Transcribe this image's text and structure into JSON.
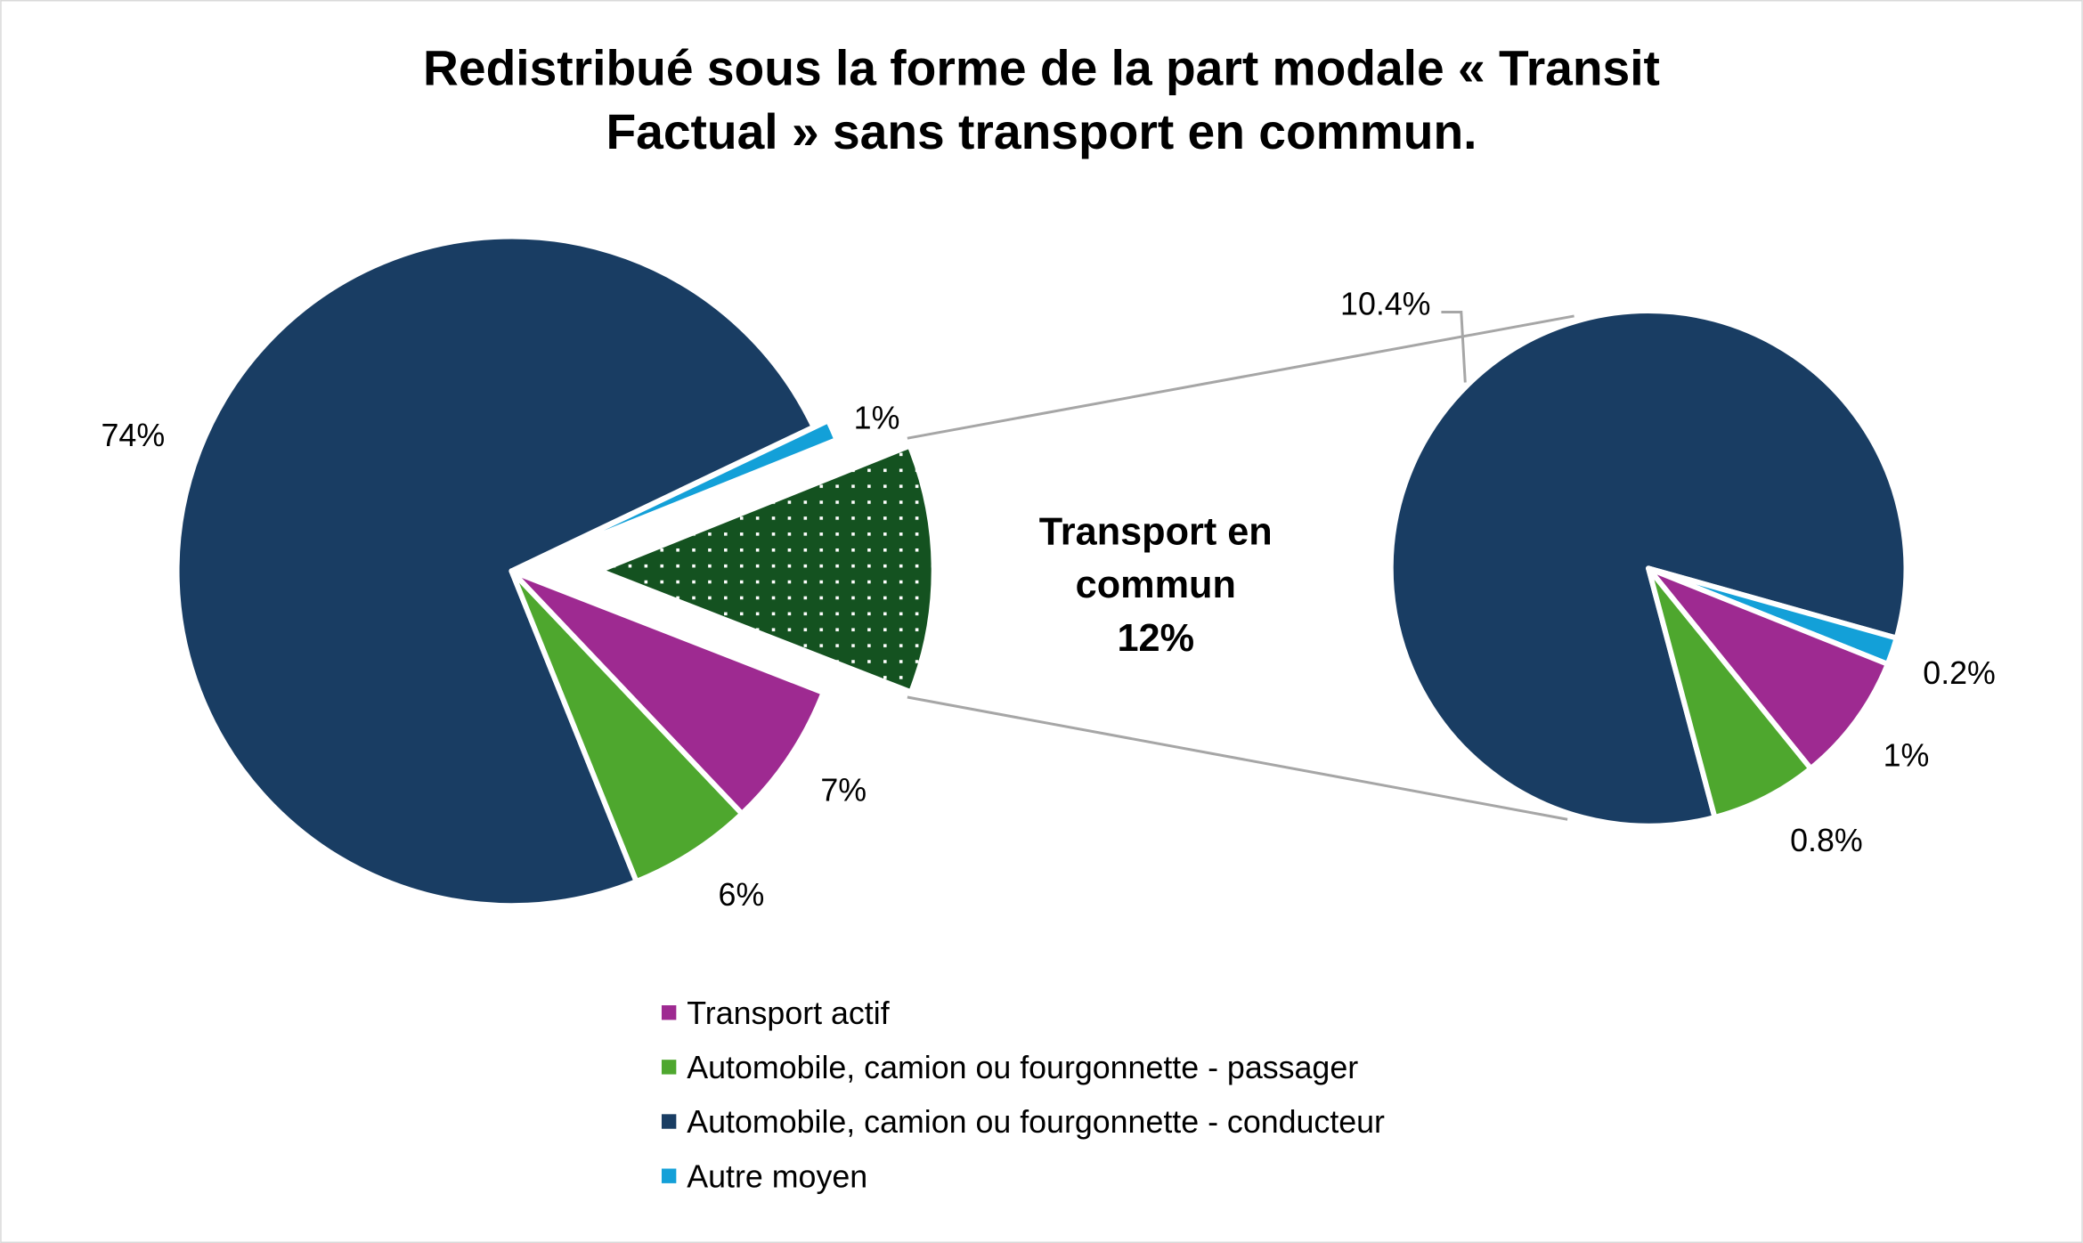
{
  "chart_data": {
    "type": "pie",
    "title_lines": [
      "Redistribué sous la forme de la part modale « Transit",
      "Factual » sans transport en commun."
    ],
    "colors": {
      "transport_actif": "#9e2a91",
      "passager": "#4ea72e",
      "conducteur": "#193d63",
      "autre": "#13a0d8",
      "transport_en_commun": "#145220"
    },
    "main_pie": {
      "slices": [
        {
          "key": "conducteur",
          "value": 74,
          "label": "74%"
        },
        {
          "key": "autre",
          "value": 1,
          "label": "1%"
        },
        {
          "key": "transport_en_commun",
          "value": 12,
          "label": ""
        },
        {
          "key": "transport_actif",
          "value": 7,
          "label": "7%"
        },
        {
          "key": "passager",
          "value": 6,
          "label": "6%"
        }
      ]
    },
    "exploded_label": {
      "lines": [
        "Transport en",
        "commun",
        "12%"
      ]
    },
    "breakdown_pie": {
      "slices": [
        {
          "key": "conducteur",
          "value": 83.5,
          "label": "10.4%"
        },
        {
          "key": "autre",
          "value": 1.7,
          "label": "0.2%"
        },
        {
          "key": "transport_actif",
          "value": 8.1,
          "label": "1%"
        },
        {
          "key": "passager",
          "value": 6.7,
          "label": "0.8%"
        }
      ]
    },
    "legend": [
      {
        "key": "transport_actif",
        "label": "Transport actif"
      },
      {
        "key": "passager",
        "label": "Automobile, camion ou fourgonnette - passager"
      },
      {
        "key": "conducteur",
        "label": "Automobile, camion ou fourgonnette - conducteur"
      },
      {
        "key": "autre",
        "label": "Autre moyen"
      }
    ],
    "legend_position": "bottom"
  }
}
